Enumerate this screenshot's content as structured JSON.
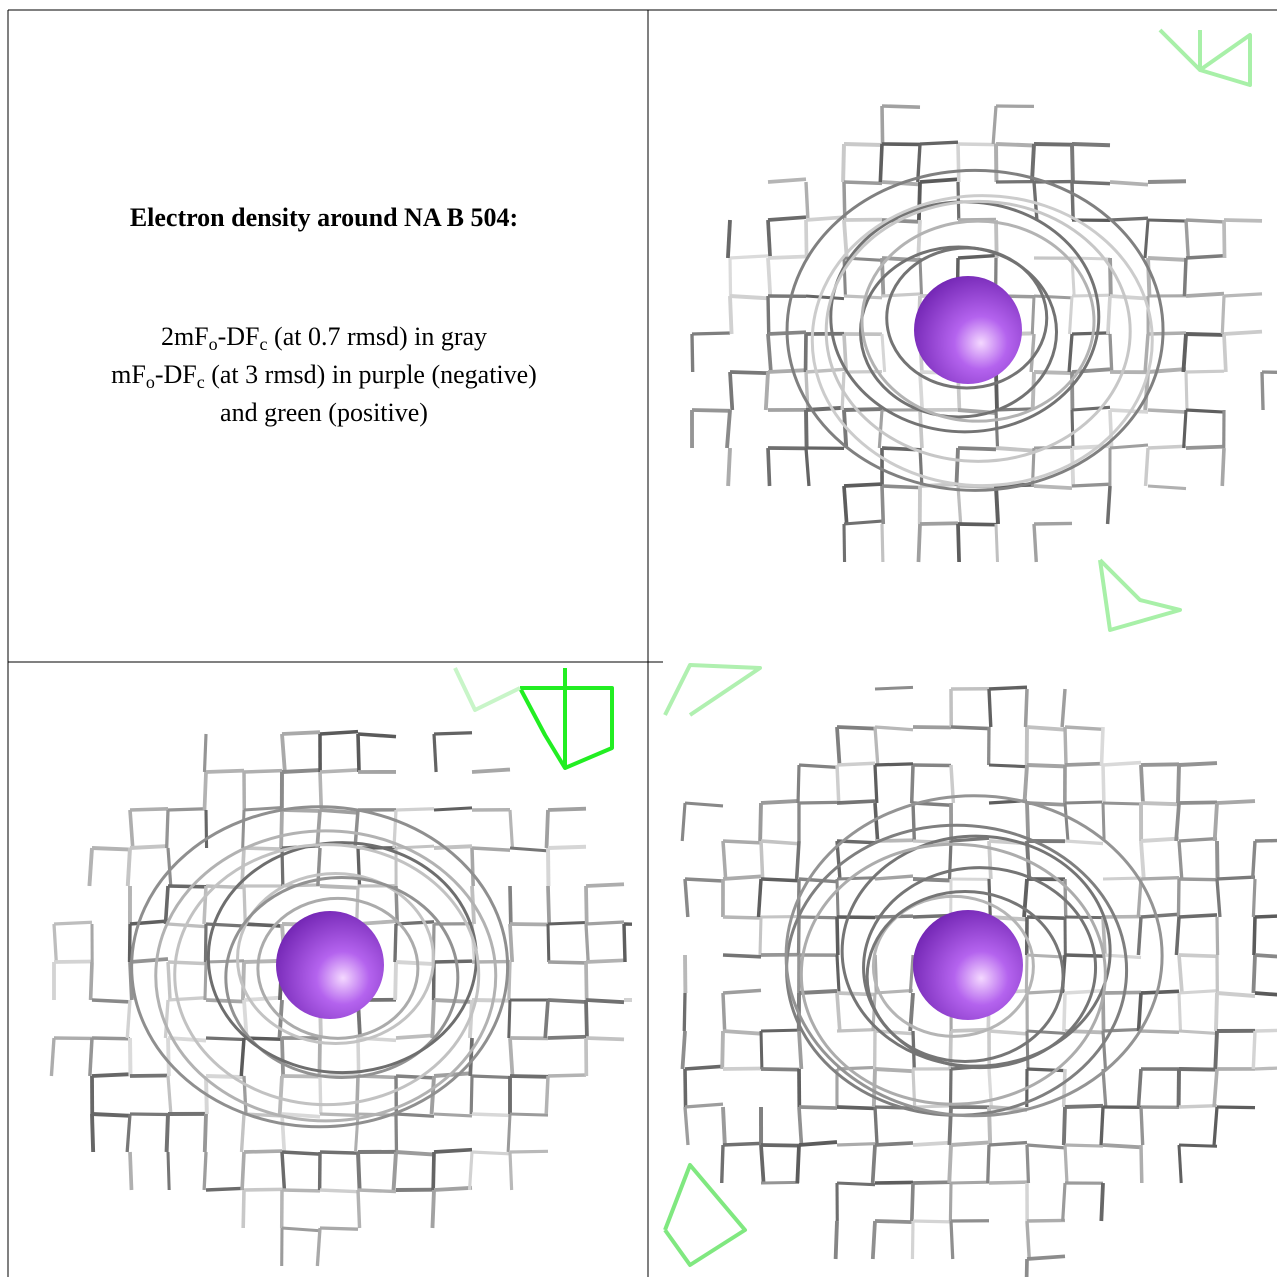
{
  "legend": {
    "title": "Electron density around NA B 504:",
    "lines": [
      [
        {
          "text": "2mF"
        },
        {
          "text": "o",
          "sub": true
        },
        {
          "text": "-DF"
        },
        {
          "text": "c",
          "sub": true
        },
        {
          "text": " (at 0.7 rmsd) in gray"
        }
      ],
      [
        {
          "text": "mF"
        },
        {
          "text": "o",
          "sub": true
        },
        {
          "text": "-DF"
        },
        {
          "text": "c",
          "sub": true
        },
        {
          "text": " (at 3 rmsd) in purple (negative)"
        }
      ],
      [
        {
          "text": "and green (positive)"
        }
      ]
    ]
  }
}
